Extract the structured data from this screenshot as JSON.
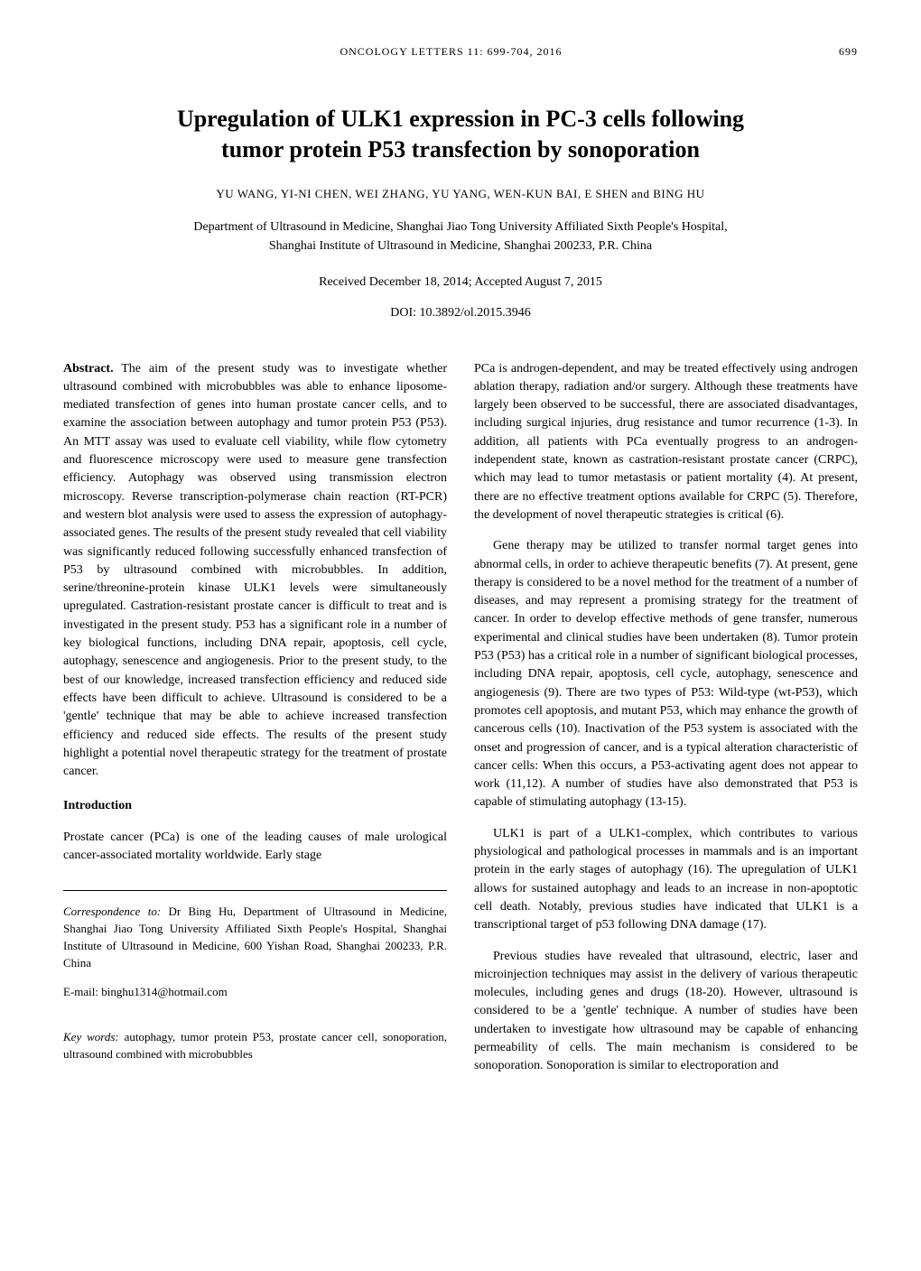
{
  "header": {
    "journal_line": "ONCOLOGY LETTERS  11:  699-704,  2016",
    "page_number": "699"
  },
  "title_lines": {
    "l1": "Upregulation of ULK1 expression in PC-3 cells following",
    "l2": "tumor protein P53 transfection by sonoporation"
  },
  "authors": "YU WANG,  YI-NI CHEN,  WEI ZHANG,  YU YANG,  WEN-KUN BAI,  E SHEN  and  BING HU",
  "affiliation_lines": {
    "l1": "Department of Ultrasound in Medicine, Shanghai Jiao Tong University Affiliated Sixth People's Hospital,",
    "l2": "Shanghai Institute of Ultrasound in Medicine, Shanghai 200233, P.R. China"
  },
  "received": "Received December 18, 2014;  Accepted August 7, 2015",
  "doi": "DOI: 10.3892/ol.2015.3946",
  "abstract": {
    "label": "Abstract.",
    "text": " The aim of the present study was to investigate whether ultrasound combined with microbubbles was able to enhance liposome-mediated transfection of genes into human prostate cancer cells, and to examine the association between autophagy and tumor protein P53 (P53). An MTT assay was used to evaluate cell viability, while flow cytometry and fluorescence microscopy were used to measure gene transfection efficiency. Autophagy was observed using transmission electron microscopy. Reverse transcription-polymerase chain reaction (RT-PCR) and western blot analysis were used to assess the expression of autophagy-associated genes. The results of the present study revealed that cell viability was significantly reduced following successfully enhanced transfection of P53 by ultrasound combined with microbubbles. In addition, serine/threonine-protein kinase ULK1 levels were simultaneously upregulated. Castration-resistant prostate cancer is difficult to treat and is investigated in the present study. P53 has a significant role in a number of key biological functions, including DNA repair, apoptosis, cell cycle, autophagy, senescence and angiogenesis. Prior to the present study, to the best of our knowledge, increased transfection efficiency and reduced side effects have been difficult to achieve. Ultrasound is considered to be a 'gentle' technique that may be able to achieve increased transfection efficiency and reduced side effects. The results of the present study highlight a potential novel therapeutic strategy for the treatment of prostate cancer."
  },
  "introduction": {
    "heading": "Introduction",
    "para1": "Prostate cancer (PCa) is one of the leading causes of male urological cancer-associated mortality worldwide. Early stage"
  },
  "correspondence": {
    "label": "Correspondence to:",
    "text": " Dr Bing Hu, Department of Ultrasound in Medicine, Shanghai Jiao Tong University Affiliated Sixth People's Hospital, Shanghai Institute of Ultrasound in Medicine, 600 Yishan Road, Shanghai 200233, P.R. China",
    "email_label": "E-mail: ",
    "email": "binghu1314@hotmail.com"
  },
  "keywords": {
    "label": "Key words:",
    "text": " autophagy, tumor protein P53, prostate cancer cell, sonoporation, ultrasound combined with microbubbles"
  },
  "right_col": {
    "para1": "PCa is androgen-dependent, and may be treated effectively using androgen ablation therapy, radiation and/or surgery. Although these treatments have largely been observed to be successful, there are associated disadvantages, including surgical injuries, drug resistance and tumor recurrence (1-3). In addition, all patients with PCa eventually progress to an androgen-independent state, known as castration-resistant prostate cancer (CRPC), which may lead to tumor metastasis or patient mortality (4). At present, there are no effective treatment options available for CRPC (5). Therefore, the development of novel therapeutic strategies is critical (6).",
    "para2": "Gene therapy may be utilized to transfer normal target genes into abnormal cells, in order to achieve therapeutic benefits (7). At present, gene therapy is considered to be a novel method for the treatment of a number of diseases, and may represent a promising strategy for the treatment of cancer. In order to develop effective methods of gene transfer, numerous experimental and clinical studies have been undertaken (8). Tumor protein P53 (P53) has a critical role in a number of significant biological processes, including DNA repair, apoptosis, cell cycle, autophagy, senescence and angiogenesis (9). There are two types of P53: Wild-type (wt-P53), which promotes cell apoptosis, and mutant P53, which may enhance the growth of cancerous cells (10). Inactivation of the P53 system is associated with the onset and progression of cancer, and is a typical alteration characteristic of cancer cells: When this occurs, a P53-activating agent does not appear to work (11,12). A number of studies have also demonstrated that P53 is capable of stimulating autophagy (13-15).",
    "para3": "ULK1 is part of a ULK1-complex, which contributes to various physiological and pathological processes in mammals and is an important protein in the early stages of autophagy (16). The upregulation of ULK1 allows for sustained autophagy and leads to an increase in non-apoptotic cell death. Notably, previous studies have indicated that ULK1 is a transcriptional target of p53 following DNA damage (17).",
    "para4": "Previous studies have revealed that ultrasound, electric, laser and microinjection techniques may assist in the delivery of various therapeutic molecules, including genes and drugs (18-20). However, ultrasound is considered to be a 'gentle' technique. A number of studies have been undertaken to investigate how ultrasound may be capable of enhancing permeability of cells. The main mechanism is considered to be sonoporation. Sonoporation is similar to electroporation and"
  }
}
